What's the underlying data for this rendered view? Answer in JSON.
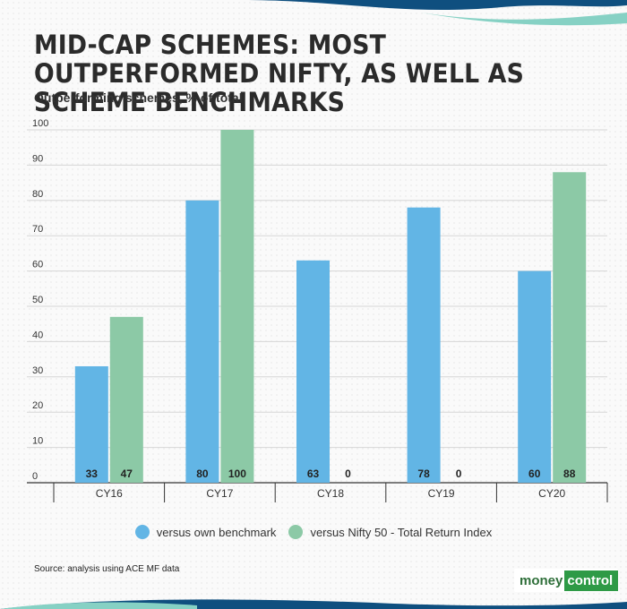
{
  "title": "MID-CAP SCHEMES: MOST OUTPERFORMED NIFTY, AS WELL AS SCHEME BENCHMARKS",
  "subtitle": "Outperforming schemes, % of total",
  "source": "Source: analysis using ACE MF data",
  "logo": {
    "part1": "money",
    "part2": "control"
  },
  "colors": {
    "series1": "#62b5e5",
    "series2": "#8cc9a6",
    "banner_dark": "#0f4f7f",
    "banner_light": "#86d1c4",
    "logo_green": "#2e9a46"
  },
  "chart_data": {
    "type": "bar",
    "title": "MID-CAP SCHEMES: MOST OUTPERFORMED NIFTY, AS WELL AS SCHEME BENCHMARKS",
    "ylabel": "Outperforming schemes, % of total",
    "xlabel": "",
    "categories": [
      "CY16",
      "CY17",
      "CY18",
      "CY19",
      "CY20"
    ],
    "series": [
      {
        "name": "versus own benchmark",
        "values": [
          33,
          80,
          63,
          78,
          60
        ]
      },
      {
        "name": "versus Nifty 50 - Total Return Index",
        "values": [
          47,
          100,
          0,
          0,
          88
        ]
      }
    ],
    "ylim": [
      0,
      100
    ],
    "yticks": [
      "0",
      "10",
      "20",
      "30",
      "40",
      "50",
      "60",
      "70",
      "80",
      "90",
      "100"
    ],
    "grid": true,
    "legend": "bottom-center",
    "data_labels": true
  }
}
